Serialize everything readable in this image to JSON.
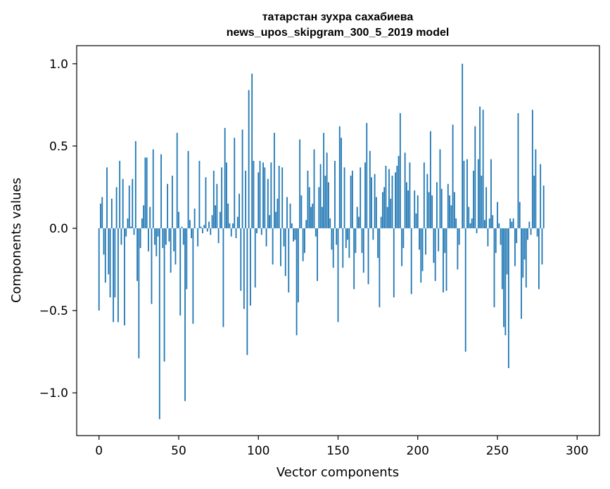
{
  "chart_data": {
    "type": "bar",
    "title_line1": "татарстан зухра сахабиева",
    "title_line2": "news_upos_skipgram_300_5_2019 model",
    "xlabel": "Vector components",
    "ylabel": "Components values",
    "xlim": [
      -14,
      314
    ],
    "ylim": [
      -1.26,
      1.11
    ],
    "xticks": [
      0,
      50,
      100,
      150,
      200,
      250,
      300
    ],
    "xtick_labels": [
      "0",
      "50",
      "100",
      "150",
      "200",
      "250",
      "300"
    ],
    "yticks": [
      -1.0,
      -0.5,
      0.0,
      0.5,
      1.0
    ],
    "ytick_labels": [
      "−1.0",
      "−0.5",
      "0.0",
      "0.5",
      "1.0"
    ],
    "bar_color": "#1f77b4",
    "grid": false,
    "values": [
      -0.5,
      0.15,
      0.19,
      -0.16,
      -0.33,
      0.37,
      -0.28,
      -0.42,
      0.18,
      -0.57,
      -0.42,
      0.25,
      -0.57,
      0.41,
      -0.1,
      0.3,
      -0.59,
      -0.05,
      0.06,
      0.26,
      0.01,
      0.3,
      -0.04,
      0.53,
      -0.32,
      -0.79,
      -0.12,
      0.06,
      0.14,
      0.43,
      0.43,
      -0.14,
      0.13,
      -0.46,
      0.48,
      -0.1,
      -0.17,
      -0.05,
      -1.16,
      0.45,
      -0.12,
      -0.81,
      -0.1,
      0.27,
      -0.08,
      -0.27,
      0.32,
      -0.14,
      -0.22,
      0.58,
      0.1,
      -0.53,
      0.01,
      -0.1,
      -1.05,
      -0.37,
      0.47,
      0.05,
      -0.06,
      -0.58,
      0.12,
      0.0,
      -0.11,
      0.41,
      0.01,
      -0.03,
      0.02,
      0.31,
      -0.02,
      0.04,
      -0.04,
      0.08,
      0.35,
      0.14,
      0.27,
      -0.09,
      0.1,
      0.37,
      -0.6,
      0.61,
      0.4,
      0.15,
      0.03,
      -0.05,
      0.03,
      0.55,
      -0.06,
      0.07,
      0.21,
      -0.38,
      0.6,
      -0.49,
      0.35,
      -0.77,
      0.84,
      -0.47,
      0.94,
      0.41,
      -0.36,
      -0.03,
      0.34,
      0.41,
      -0.04,
      0.4,
      0.37,
      -0.11,
      0.3,
      0.08,
      0.4,
      -0.22,
      0.58,
      0.1,
      0.18,
      0.38,
      -0.23,
      0.37,
      -0.11,
      -0.29,
      0.19,
      -0.39,
      0.15,
      0.03,
      -0.08,
      -0.07,
      -0.65,
      -0.45,
      0.54,
      0.2,
      -0.2,
      -0.15,
      0.05,
      0.35,
      0.25,
      0.13,
      0.15,
      0.48,
      -0.05,
      -0.32,
      0.25,
      0.39,
      0.13,
      0.58,
      0.32,
      0.46,
      0.28,
      0.06,
      -0.13,
      -0.24,
      0.41,
      -0.1,
      -0.57,
      0.62,
      0.55,
      -0.24,
      0.37,
      -0.12,
      -0.07,
      -0.18,
      0.32,
      0.35,
      -0.37,
      -0.15,
      0.13,
      0.07,
      0.37,
      -0.15,
      -0.27,
      0.4,
      0.64,
      -0.34,
      0.47,
      0.31,
      -0.07,
      0.33,
      0.19,
      -0.18,
      -0.48,
      0.07,
      0.22,
      0.25,
      0.38,
      0.13,
      0.36,
      0.18,
      0.32,
      -0.42,
      0.34,
      0.38,
      0.44,
      0.7,
      -0.23,
      -0.12,
      0.46,
      0.28,
      0.23,
      0.4,
      -0.4,
      0.0,
      0.23,
      0.09,
      0.2,
      -0.13,
      -0.33,
      -0.26,
      0.4,
      -0.16,
      0.33,
      0.22,
      0.59,
      0.2,
      -0.21,
      -0.32,
      0.28,
      -0.14,
      0.48,
      0.24,
      -0.39,
      -0.15,
      -0.38,
      0.27,
      0.2,
      0.14,
      0.63,
      0.22,
      0.06,
      -0.25,
      -0.1,
      0.0,
      1.0,
      0.41,
      -0.75,
      0.42,
      0.13,
      0.03,
      0.06,
      0.35,
      0.62,
      -0.03,
      0.42,
      0.74,
      0.32,
      0.72,
      0.05,
      0.25,
      -0.11,
      0.06,
      0.42,
      0.08,
      -0.48,
      -0.15,
      0.16,
      0.03,
      -0.1,
      -0.37,
      -0.6,
      -0.65,
      -0.28,
      -0.85,
      0.06,
      0.04,
      0.06,
      -0.23,
      -0.09,
      0.7,
      0.16,
      -0.55,
      -0.3,
      -0.19,
      -0.36,
      -0.07,
      0.04,
      -0.04,
      0.72,
      0.32,
      0.48,
      -0.05,
      -0.37,
      0.39,
      -0.22,
      0.26
    ]
  }
}
